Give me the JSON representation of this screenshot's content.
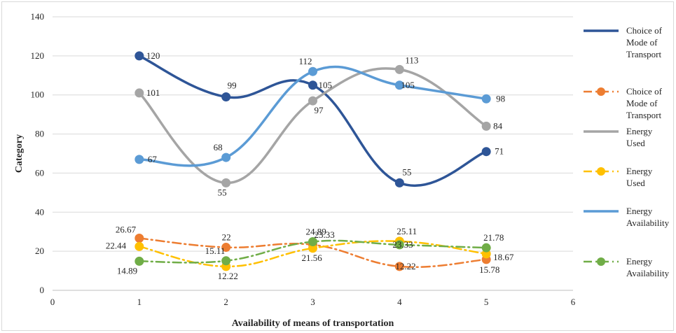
{
  "chart_data": {
    "type": "line",
    "xlabel": "Availability of means of transportation",
    "ylabel": "Category",
    "xlim": [
      0,
      6
    ],
    "ylim": [
      0,
      140
    ],
    "x_ticks": [
      "0",
      "1",
      "2",
      "3",
      "4",
      "5",
      "6"
    ],
    "y_ticks": [
      "0",
      "20",
      "40",
      "60",
      "80",
      "100",
      "120",
      "140"
    ],
    "grid": "horizontal",
    "legend": "right",
    "x": [
      1,
      2,
      3,
      4,
      5
    ],
    "series": [
      {
        "name": "Choice of Mode of Transport",
        "values": [
          120,
          99,
          105,
          55,
          71
        ],
        "labels": [
          "120",
          "99",
          "105",
          "55",
          "71"
        ],
        "color": "#2e5597",
        "style": "solid"
      },
      {
        "name": "Choice of Mode of Transport",
        "values": [
          26.67,
          22,
          23.33,
          12.22,
          15.78
        ],
        "labels": [
          "26.67",
          "22",
          "23.33",
          "12.22",
          "15.78"
        ],
        "color": "#ed7d31",
        "style": "dashdot"
      },
      {
        "name": "Energy Used",
        "values": [
          101,
          55,
          97,
          113,
          84
        ],
        "labels": [
          "101",
          "55",
          "97",
          "113",
          "84"
        ],
        "color": "#a5a5a5",
        "style": "solid"
      },
      {
        "name": "Energy Used",
        "values": [
          22.44,
          12.22,
          21.56,
          25.11,
          18.67
        ],
        "labels": [
          "22.44",
          "12.22",
          "21.56",
          "25.11",
          "18.67"
        ],
        "color": "#ffc000",
        "style": "dashdot"
      },
      {
        "name": "Energy Availability",
        "values": [
          67,
          68,
          112,
          105,
          98
        ],
        "labels": [
          "67",
          "68",
          "112",
          "105",
          "98"
        ],
        "color": "#5b9bd5",
        "style": "solid"
      },
      {
        "name": "Energy Availability",
        "values": [
          14.89,
          15.11,
          24.89,
          23.33,
          21.78
        ],
        "labels": [
          "14.89",
          "15.11",
          "24.89",
          "23.33",
          "21.78"
        ],
        "color": "#70ad47",
        "style": "dashdot"
      }
    ]
  }
}
